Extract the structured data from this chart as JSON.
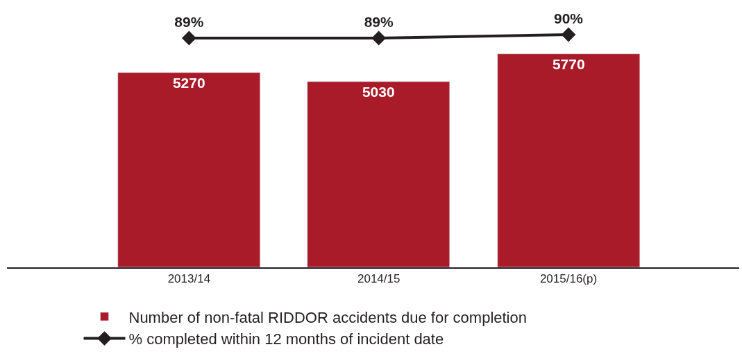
{
  "chart_data": {
    "type": "bar",
    "categories": [
      "2013/14",
      "2014/15",
      "2015/16(p)"
    ],
    "series": [
      {
        "name": "Number of non-fatal RIDDOR accidents due for completion",
        "color": "#a91b29",
        "values": [
          5270,
          5030,
          5770
        ]
      },
      {
        "name": "% completed within 12 months of incident date",
        "type": "line",
        "axis": "y2",
        "color": "#231f20",
        "marker": "diamond",
        "values": [
          89,
          89,
          90
        ],
        "value_labels": [
          "89%",
          "89%",
          "90%"
        ]
      }
    ],
    "ylim": [
      0,
      7240
    ],
    "y2lim": [
      22.8,
      100
    ],
    "tick_labels": "x",
    "data_labels": true,
    "legend": "bottom left"
  }
}
